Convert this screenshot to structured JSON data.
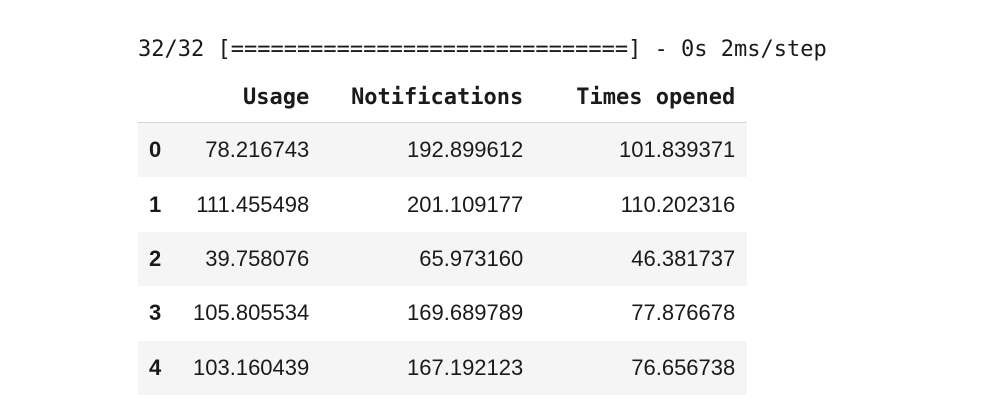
{
  "log": {
    "progress_line": "32/32 [==============================] - 0s 2ms/step"
  },
  "table": {
    "columns": [
      "Usage",
      "Notifications",
      "Times opened"
    ],
    "rows": [
      {
        "index": "0",
        "usage": "78.216743",
        "notifications": "192.899612",
        "times_opened": "101.839371"
      },
      {
        "index": "1",
        "usage": "111.455498",
        "notifications": "201.109177",
        "times_opened": "110.202316"
      },
      {
        "index": "2",
        "usage": "39.758076",
        "notifications": "65.973160",
        "times_opened": "46.381737"
      },
      {
        "index": "3",
        "usage": "105.805534",
        "notifications": "169.689789",
        "times_opened": "77.876678"
      },
      {
        "index": "4",
        "usage": "103.160439",
        "notifications": "167.192123",
        "times_opened": "76.656738"
      }
    ]
  }
}
